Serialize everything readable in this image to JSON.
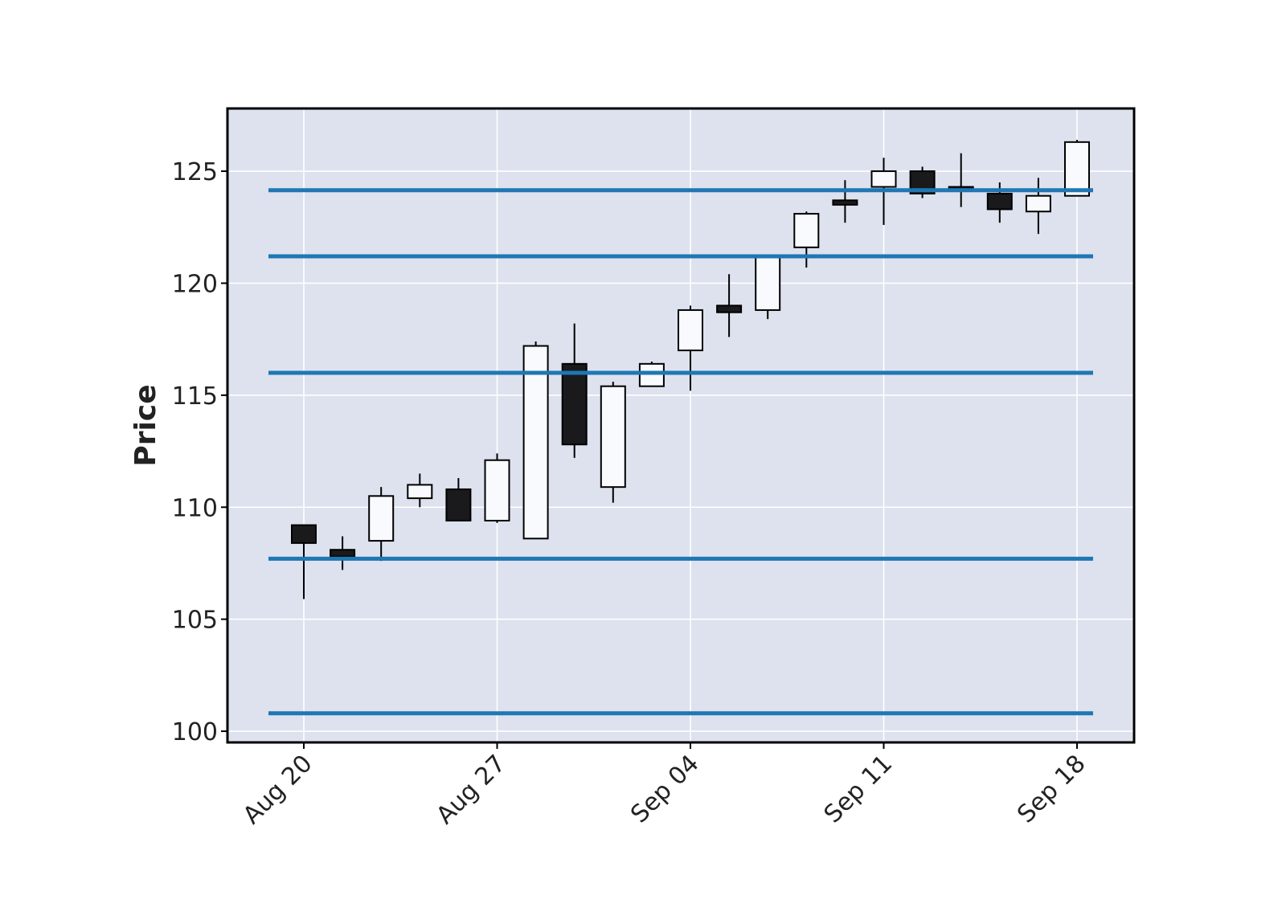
{
  "chart_data": {
    "type": "candlestick",
    "title": "",
    "xlabel": "",
    "ylabel": "Price",
    "ylim": [
      99.5,
      127.8
    ],
    "y_ticks": [
      100,
      105,
      110,
      115,
      120,
      125
    ],
    "x_tick_labels": [
      "Aug 20",
      "Aug 27",
      "Sep 04",
      "Sep 11",
      "Sep 18"
    ],
    "x_tick_positions": [
      0,
      5,
      10,
      15,
      20
    ],
    "grid": true,
    "legend": "none",
    "background_color": "#dde2ee",
    "up_color": "#f8fafd",
    "down_color": "#1a1a1c",
    "hline_color": "#1f77b4",
    "candles": [
      {
        "open": 109.2,
        "high": 109.2,
        "low": 105.9,
        "close": 108.4
      },
      {
        "open": 108.1,
        "high": 108.7,
        "low": 107.2,
        "close": 107.8
      },
      {
        "open": 108.5,
        "high": 110.9,
        "low": 107.6,
        "close": 110.5
      },
      {
        "open": 110.4,
        "high": 111.5,
        "low": 110.0,
        "close": 111.0
      },
      {
        "open": 110.8,
        "high": 111.3,
        "low": 109.4,
        "close": 109.4
      },
      {
        "open": 109.4,
        "high": 112.4,
        "low": 109.3,
        "close": 112.1
      },
      {
        "open": 108.6,
        "high": 117.4,
        "low": 108.6,
        "close": 117.2
      },
      {
        "open": 116.4,
        "high": 118.2,
        "low": 112.2,
        "close": 112.8
      },
      {
        "open": 110.9,
        "high": 115.6,
        "low": 110.2,
        "close": 115.4
      },
      {
        "open": 115.4,
        "high": 116.5,
        "low": 115.4,
        "close": 116.4
      },
      {
        "open": 117.0,
        "high": 119.0,
        "low": 115.2,
        "close": 118.8
      },
      {
        "open": 119.0,
        "high": 120.4,
        "low": 117.6,
        "close": 118.7
      },
      {
        "open": 118.8,
        "high": 121.2,
        "low": 118.4,
        "close": 121.2
      },
      {
        "open": 121.6,
        "high": 123.2,
        "low": 120.7,
        "close": 123.1
      },
      {
        "open": 123.7,
        "high": 124.6,
        "low": 122.7,
        "close": 123.5
      },
      {
        "open": 124.3,
        "high": 125.6,
        "low": 122.6,
        "close": 125.0
      },
      {
        "open": 125.0,
        "high": 125.2,
        "low": 123.8,
        "close": 124.0
      },
      {
        "open": 124.3,
        "high": 125.8,
        "low": 123.4,
        "close": 124.2
      },
      {
        "open": 124.0,
        "high": 124.5,
        "low": 122.7,
        "close": 123.3
      },
      {
        "open": 123.2,
        "high": 124.7,
        "low": 122.2,
        "close": 123.9
      },
      {
        "open": 123.9,
        "high": 126.4,
        "low": 123.9,
        "close": 126.3
      }
    ],
    "horizontal_lines": [
      124.15,
      121.2,
      116.0,
      107.7,
      100.8
    ]
  }
}
